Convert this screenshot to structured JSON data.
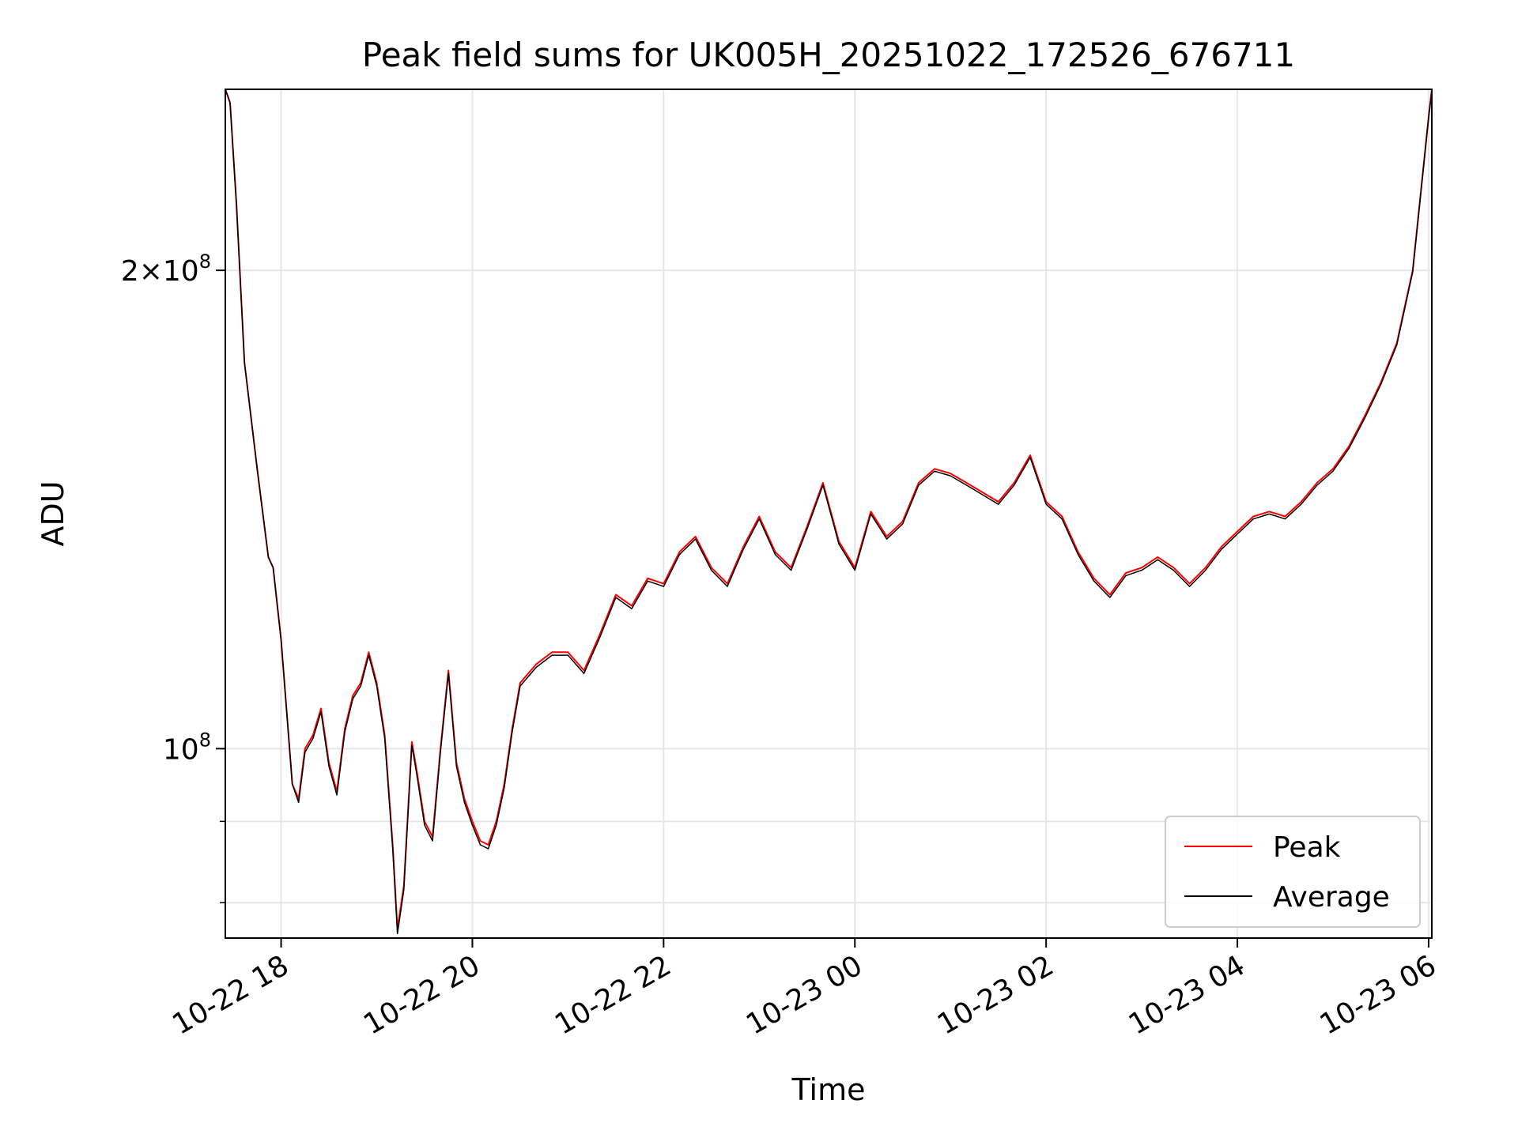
{
  "chart_data": {
    "type": "line",
    "title": "Peak field sums for UK005H_20251022_172526_676711",
    "xlabel": "Time",
    "ylabel": "ADU",
    "yscale": "log",
    "ylim": [
      76000000,
      260000000
    ],
    "xlim": [
      "2025-10-22 17:25",
      "2025-10-23 06:02"
    ],
    "grid": true,
    "legend_position": "lower right",
    "x_ticks": [
      {
        "t": "2025-10-22 18:00",
        "label": "10-22 18"
      },
      {
        "t": "2025-10-22 20:00",
        "label": "10-22 20"
      },
      {
        "t": "2025-10-22 22:00",
        "label": "10-22 22"
      },
      {
        "t": "2025-10-23 00:00",
        "label": "10-23 00"
      },
      {
        "t": "2025-10-23 02:00",
        "label": "10-23 02"
      },
      {
        "t": "2025-10-23 04:00",
        "label": "10-23 04"
      },
      {
        "t": "2025-10-23 06:00",
        "label": "10-23 06"
      }
    ],
    "y_major_ticks": [
      {
        "value": 100000000,
        "base": "10",
        "exp": "8"
      },
      {
        "value": 200000000,
        "mant": "2",
        "base": "10",
        "exp": "8"
      }
    ],
    "y_minor_ticks": [
      80000000,
      90000000
    ],
    "series": [
      {
        "name": "Peak",
        "color": "#ff0000",
        "points": [
          [
            "2025-10-22 17:25",
            260000000
          ],
          [
            "2025-10-22 17:28",
            255000000
          ],
          [
            "2025-10-22 17:32",
            220000000
          ],
          [
            "2025-10-22 17:37",
            175000000
          ],
          [
            "2025-10-22 17:45",
            150000000
          ],
          [
            "2025-10-22 17:52",
            132000000
          ],
          [
            "2025-10-22 17:55",
            130000000
          ],
          [
            "2025-10-22 18:00",
            117000000
          ],
          [
            "2025-10-22 18:04",
            104000000
          ],
          [
            "2025-10-22 18:07",
            95000000
          ],
          [
            "2025-10-22 18:11",
            93000000
          ],
          [
            "2025-10-22 18:15",
            100000000
          ],
          [
            "2025-10-22 18:20",
            102000000
          ],
          [
            "2025-10-22 18:25",
            106000000
          ],
          [
            "2025-10-22 18:30",
            98000000
          ],
          [
            "2025-10-22 18:35",
            94000000
          ],
          [
            "2025-10-22 18:40",
            103000000
          ],
          [
            "2025-10-22 18:45",
            108000000
          ],
          [
            "2025-10-22 18:50",
            110000000
          ],
          [
            "2025-10-22 18:55",
            115000000
          ],
          [
            "2025-10-22 19:00",
            110000000
          ],
          [
            "2025-10-22 19:05",
            102000000
          ],
          [
            "2025-10-22 19:10",
            87000000
          ],
          [
            "2025-10-22 19:13",
            77000000
          ],
          [
            "2025-10-22 19:17",
            82000000
          ],
          [
            "2025-10-22 19:22",
            101000000
          ],
          [
            "2025-10-22 19:25",
            97000000
          ],
          [
            "2025-10-22 19:30",
            90000000
          ],
          [
            "2025-10-22 19:35",
            88000000
          ],
          [
            "2025-10-22 19:40",
            100000000
          ],
          [
            "2025-10-22 19:45",
            112000000
          ],
          [
            "2025-10-22 19:50",
            98000000
          ],
          [
            "2025-10-22 19:55",
            93000000
          ],
          [
            "2025-10-22 20:00",
            90000000
          ],
          [
            "2025-10-22 20:05",
            87500000
          ],
          [
            "2025-10-22 20:10",
            87000000
          ],
          [
            "2025-10-22 20:15",
            90000000
          ],
          [
            "2025-10-22 20:20",
            95000000
          ],
          [
            "2025-10-22 20:25",
            103000000
          ],
          [
            "2025-10-22 20:30",
            110000000
          ],
          [
            "2025-10-22 20:40",
            113000000
          ],
          [
            "2025-10-22 20:50",
            115000000
          ],
          [
            "2025-10-22 21:00",
            115000000
          ],
          [
            "2025-10-22 21:10",
            112000000
          ],
          [
            "2025-10-22 21:20",
            118000000
          ],
          [
            "2025-10-22 21:30",
            125000000
          ],
          [
            "2025-10-22 21:40",
            123000000
          ],
          [
            "2025-10-22 21:50",
            128000000
          ],
          [
            "2025-10-22 22:00",
            127000000
          ],
          [
            "2025-10-22 22:10",
            133000000
          ],
          [
            "2025-10-22 22:20",
            136000000
          ],
          [
            "2025-10-22 22:30",
            130000000
          ],
          [
            "2025-10-22 22:40",
            127000000
          ],
          [
            "2025-10-22 22:50",
            134000000
          ],
          [
            "2025-10-22 23:00",
            140000000
          ],
          [
            "2025-10-22 23:10",
            133000000
          ],
          [
            "2025-10-22 23:20",
            130000000
          ],
          [
            "2025-10-22 23:30",
            138000000
          ],
          [
            "2025-10-22 23:40",
            147000000
          ],
          [
            "2025-10-22 23:50",
            135000000
          ],
          [
            "2025-10-23 00:00",
            130000000
          ],
          [
            "2025-10-23 00:10",
            141000000
          ],
          [
            "2025-10-23 00:20",
            136000000
          ],
          [
            "2025-10-23 00:30",
            139000000
          ],
          [
            "2025-10-23 00:40",
            147000000
          ],
          [
            "2025-10-23 00:50",
            150000000
          ],
          [
            "2025-10-23 01:00",
            149000000
          ],
          [
            "2025-10-23 01:10",
            147000000
          ],
          [
            "2025-10-23 01:20",
            145000000
          ],
          [
            "2025-10-23 01:30",
            143000000
          ],
          [
            "2025-10-23 01:40",
            147000000
          ],
          [
            "2025-10-23 01:50",
            153000000
          ],
          [
            "2025-10-23 02:00",
            143000000
          ],
          [
            "2025-10-23 02:10",
            140000000
          ],
          [
            "2025-10-23 02:20",
            133000000
          ],
          [
            "2025-10-23 02:30",
            128000000
          ],
          [
            "2025-10-23 02:40",
            125000000
          ],
          [
            "2025-10-23 02:50",
            129000000
          ],
          [
            "2025-10-23 03:00",
            130000000
          ],
          [
            "2025-10-23 03:10",
            132000000
          ],
          [
            "2025-10-23 03:20",
            130000000
          ],
          [
            "2025-10-23 03:30",
            127000000
          ],
          [
            "2025-10-23 03:40",
            130000000
          ],
          [
            "2025-10-23 03:50",
            134000000
          ],
          [
            "2025-10-23 04:00",
            137000000
          ],
          [
            "2025-10-23 04:10",
            140000000
          ],
          [
            "2025-10-23 04:20",
            141000000
          ],
          [
            "2025-10-23 04:30",
            140000000
          ],
          [
            "2025-10-23 04:40",
            143000000
          ],
          [
            "2025-10-23 04:50",
            147000000
          ],
          [
            "2025-10-23 05:00",
            150000000
          ],
          [
            "2025-10-23 05:10",
            155000000
          ],
          [
            "2025-10-23 05:20",
            162000000
          ],
          [
            "2025-10-23 05:30",
            170000000
          ],
          [
            "2025-10-23 05:40",
            180000000
          ],
          [
            "2025-10-23 05:50",
            200000000
          ],
          [
            "2025-10-23 06:00",
            250000000
          ],
          [
            "2025-10-23 06:02",
            260000000
          ]
        ]
      },
      {
        "name": "Average",
        "color": "#000000",
        "points": [
          [
            "2025-10-22 17:25",
            260000000
          ],
          [
            "2025-10-22 17:28",
            255000000
          ],
          [
            "2025-10-22 17:32",
            220000000
          ],
          [
            "2025-10-22 17:37",
            175000000
          ],
          [
            "2025-10-22 17:45",
            150000000
          ],
          [
            "2025-10-22 17:52",
            132000000
          ],
          [
            "2025-10-22 17:55",
            130000000
          ],
          [
            "2025-10-22 18:00",
            117000000
          ],
          [
            "2025-10-22 18:04",
            104000000
          ],
          [
            "2025-10-22 18:07",
            95000000
          ],
          [
            "2025-10-22 18:11",
            92500000
          ],
          [
            "2025-10-22 18:15",
            99500000
          ],
          [
            "2025-10-22 18:20",
            101500000
          ],
          [
            "2025-10-22 18:25",
            105500000
          ],
          [
            "2025-10-22 18:30",
            97500000
          ],
          [
            "2025-10-22 18:35",
            93500000
          ],
          [
            "2025-10-22 18:40",
            102500000
          ],
          [
            "2025-10-22 18:45",
            107500000
          ],
          [
            "2025-10-22 18:50",
            109500000
          ],
          [
            "2025-10-22 18:55",
            114500000
          ],
          [
            "2025-10-22 19:00",
            109500000
          ],
          [
            "2025-10-22 19:05",
            101500000
          ],
          [
            "2025-10-22 19:10",
            86500000
          ],
          [
            "2025-10-22 19:13",
            76500000
          ],
          [
            "2025-10-22 19:17",
            81500000
          ],
          [
            "2025-10-22 19:22",
            100500000
          ],
          [
            "2025-10-22 19:25",
            96500000
          ],
          [
            "2025-10-22 19:30",
            89500000
          ],
          [
            "2025-10-22 19:35",
            87500000
          ],
          [
            "2025-10-22 19:40",
            99500000
          ],
          [
            "2025-10-22 19:45",
            111500000
          ],
          [
            "2025-10-22 19:50",
            97500000
          ],
          [
            "2025-10-22 19:55",
            92500000
          ],
          [
            "2025-10-22 20:00",
            89500000
          ],
          [
            "2025-10-22 20:05",
            87000000
          ],
          [
            "2025-10-22 20:10",
            86500000
          ],
          [
            "2025-10-22 20:15",
            89500000
          ],
          [
            "2025-10-22 20:20",
            94500000
          ],
          [
            "2025-10-22 20:25",
            102500000
          ],
          [
            "2025-10-22 20:30",
            109500000
          ],
          [
            "2025-10-22 20:40",
            112500000
          ],
          [
            "2025-10-22 20:50",
            114500000
          ],
          [
            "2025-10-22 21:00",
            114500000
          ],
          [
            "2025-10-22 21:10",
            111500000
          ],
          [
            "2025-10-22 21:20",
            117500000
          ],
          [
            "2025-10-22 21:30",
            124500000
          ],
          [
            "2025-10-22 21:40",
            122500000
          ],
          [
            "2025-10-22 21:50",
            127500000
          ],
          [
            "2025-10-22 22:00",
            126500000
          ],
          [
            "2025-10-22 22:10",
            132500000
          ],
          [
            "2025-10-22 22:20",
            135500000
          ],
          [
            "2025-10-22 22:30",
            129500000
          ],
          [
            "2025-10-22 22:40",
            126500000
          ],
          [
            "2025-10-22 22:50",
            133500000
          ],
          [
            "2025-10-22 23:00",
            139500000
          ],
          [
            "2025-10-22 23:10",
            132500000
          ],
          [
            "2025-10-22 23:20",
            129500000
          ],
          [
            "2025-10-22 23:30",
            137500000
          ],
          [
            "2025-10-22 23:40",
            146500000
          ],
          [
            "2025-10-22 23:50",
            134500000
          ],
          [
            "2025-10-23 00:00",
            129500000
          ],
          [
            "2025-10-23 00:10",
            140500000
          ],
          [
            "2025-10-23 00:20",
            135500000
          ],
          [
            "2025-10-23 00:30",
            138500000
          ],
          [
            "2025-10-23 00:40",
            146500000
          ],
          [
            "2025-10-23 00:50",
            149500000
          ],
          [
            "2025-10-23 01:00",
            148500000
          ],
          [
            "2025-10-23 01:10",
            146500000
          ],
          [
            "2025-10-23 01:20",
            144500000
          ],
          [
            "2025-10-23 01:30",
            142500000
          ],
          [
            "2025-10-23 01:40",
            146500000
          ],
          [
            "2025-10-23 01:50",
            152500000
          ],
          [
            "2025-10-23 02:00",
            142500000
          ],
          [
            "2025-10-23 02:10",
            139500000
          ],
          [
            "2025-10-23 02:20",
            132500000
          ],
          [
            "2025-10-23 02:30",
            127500000
          ],
          [
            "2025-10-23 02:40",
            124500000
          ],
          [
            "2025-10-23 02:50",
            128500000
          ],
          [
            "2025-10-23 03:00",
            129500000
          ],
          [
            "2025-10-23 03:10",
            131500000
          ],
          [
            "2025-10-23 03:20",
            129500000
          ],
          [
            "2025-10-23 03:30",
            126500000
          ],
          [
            "2025-10-23 03:40",
            129500000
          ],
          [
            "2025-10-23 03:50",
            133500000
          ],
          [
            "2025-10-23 04:00",
            136500000
          ],
          [
            "2025-10-23 04:10",
            139500000
          ],
          [
            "2025-10-23 04:20",
            140500000
          ],
          [
            "2025-10-23 04:30",
            139500000
          ],
          [
            "2025-10-23 04:40",
            142500000
          ],
          [
            "2025-10-23 04:50",
            146500000
          ],
          [
            "2025-10-23 05:00",
            149500000
          ],
          [
            "2025-10-23 05:10",
            154500000
          ],
          [
            "2025-10-23 05:20",
            161500000
          ],
          [
            "2025-10-23 05:30",
            169500000
          ],
          [
            "2025-10-23 05:40",
            179500000
          ],
          [
            "2025-10-23 05:50",
            199500000
          ],
          [
            "2025-10-23 06:00",
            249500000
          ],
          [
            "2025-10-23 06:02",
            259500000
          ]
        ]
      }
    ]
  }
}
